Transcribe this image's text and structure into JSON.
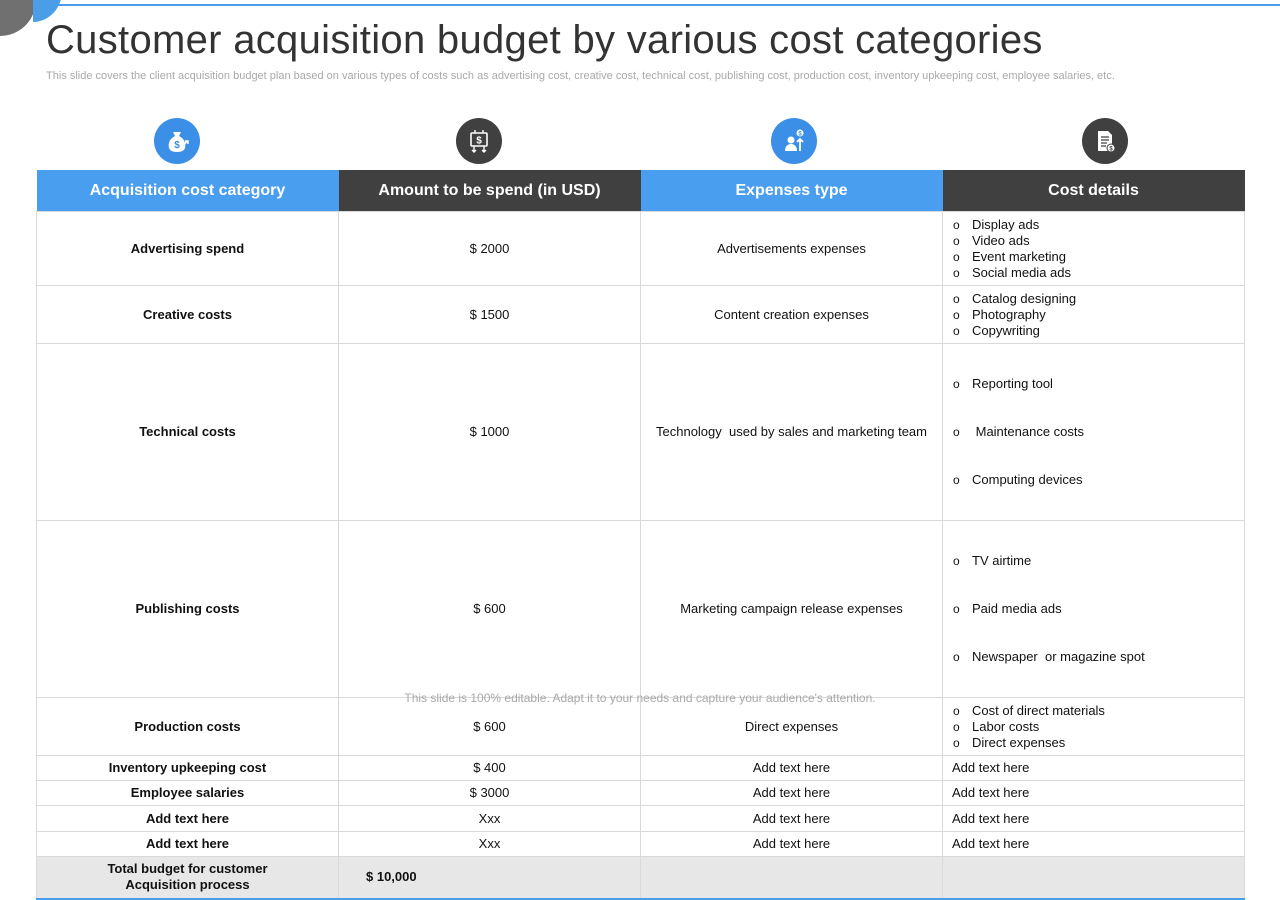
{
  "title": "Customer acquisition budget by various cost categories",
  "subtitle": "This slide covers the client acquisition budget plan based on various types of costs such as advertising cost, creative cost, technical cost, publishing cost, production cost, inventory upkeeping cost, employee salaries, etc.",
  "colors": {
    "accent_blue": "#4a9ef0",
    "header_dark": "#404040",
    "total_bg": "#e7e7e7"
  },
  "icons": [
    "money-bag-icon",
    "dollar-sign-board-icon",
    "person-dollar-growth-icon",
    "document-list-icon"
  ],
  "table": {
    "headers": [
      "Acquisition cost category",
      "Amount to be spend (in USD)",
      "Expenses type",
      "Cost details"
    ],
    "rows": [
      {
        "category": "Advertising spend",
        "amount": "$ 2000",
        "expense": "Advertisements expenses",
        "details": [
          "Display ads",
          "Video ads",
          "Event marketing",
          "Social media ads"
        ]
      },
      {
        "category": "Creative costs",
        "amount": "$ 1500",
        "expense": "Content creation expenses",
        "details": [
          "Catalog designing",
          "Photography",
          "Copywriting"
        ]
      },
      {
        "category": "Technical costs",
        "amount": "$ 1000",
        "expense": "Technology  used by sales and marketing team",
        "details": [
          "Reporting tool",
          " Maintenance costs",
          "Computing devices"
        ]
      },
      {
        "category": "Publishing costs",
        "amount": "$ 600",
        "expense": "Marketing campaign release expenses",
        "details": [
          "TV airtime",
          "Paid media ads",
          "Newspaper  or magazine spot"
        ]
      },
      {
        "category": "Production costs",
        "amount": "$ 600",
        "expense": "Direct expenses",
        "details": [
          "Cost of direct materials",
          "Labor costs",
          "Direct expenses"
        ]
      },
      {
        "category": "Inventory upkeeping cost",
        "amount": "$ 400",
        "expense": "Add text here",
        "details_text": "Add text here"
      },
      {
        "category": "Employee salaries",
        "amount": "$ 3000",
        "expense": "Add text here",
        "details_text": "Add text here"
      },
      {
        "category": "Add text here",
        "amount": "Xxx",
        "expense": "Add text here",
        "details_text": "Add text here"
      },
      {
        "category": "Add text here",
        "amount": "Xxx",
        "expense": "Add text here",
        "details_text": "Add text here"
      }
    ],
    "total": {
      "label_line1": "Total budget for customer",
      "label_line2": "Acquisition process",
      "amount": "$ 10,000"
    }
  },
  "footer": "This slide is 100% editable. Adapt it to your needs and capture your audience's attention."
}
